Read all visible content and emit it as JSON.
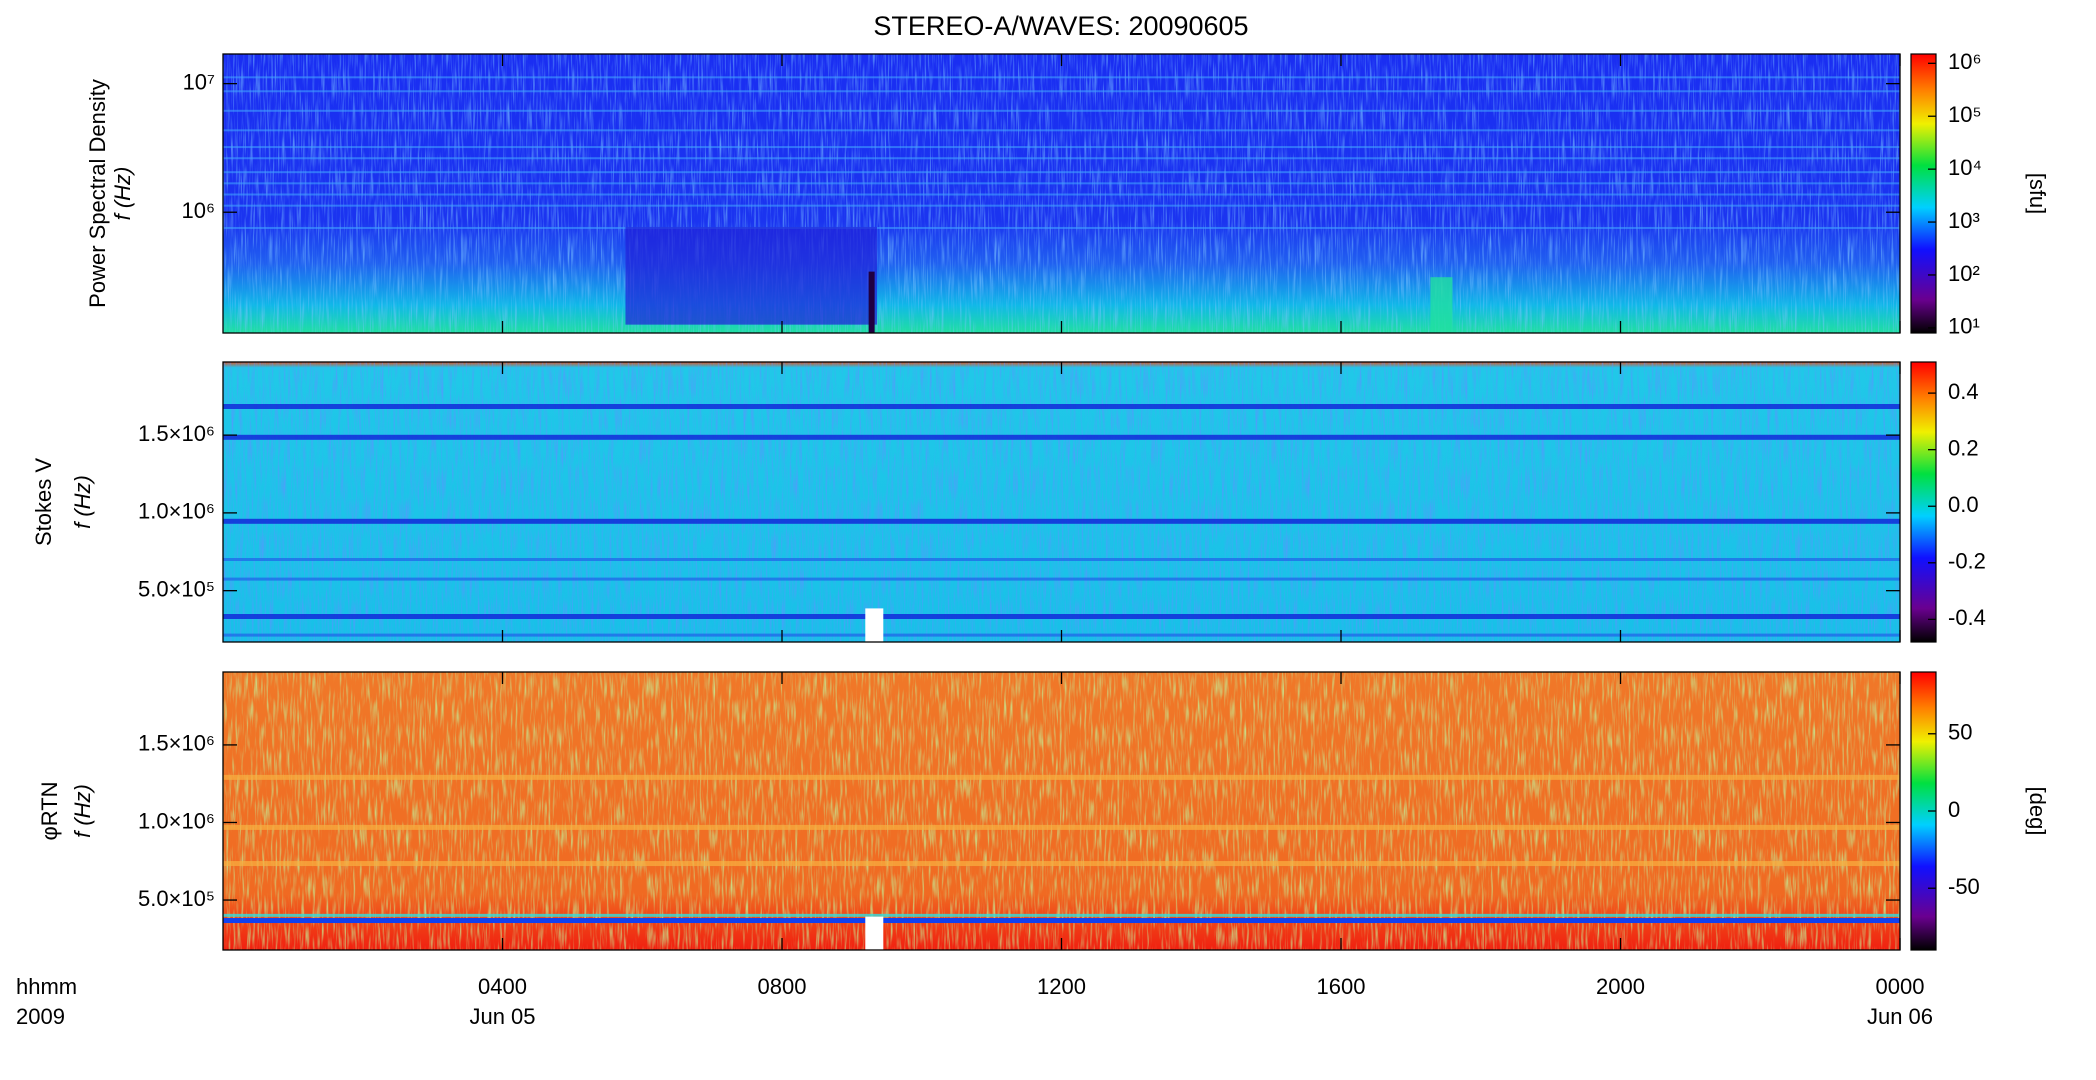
{
  "chart_data": [
    {
      "type": "heatmap",
      "title": "STEREO-A/WAVES: 20090605",
      "ylabel": [
        "Power Spectral Density",
        "f (Hz)"
      ],
      "ylog": true,
      "ylim": [
        115000,
        17000000
      ],
      "yticks": [
        {
          "value": 1000000,
          "label": "10⁶"
        },
        {
          "value": 10000000,
          "label": "10⁷"
        }
      ],
      "colorbar": {
        "label": "[sfu]",
        "log": true,
        "lim": [
          8,
          1500000
        ],
        "ticks": [
          {
            "value": 10,
            "label": "10¹"
          },
          {
            "value": 100,
            "label": "10²"
          },
          {
            "value": 1000,
            "label": "10³"
          },
          {
            "value": 10000,
            "label": "10⁴"
          },
          {
            "value": 100000,
            "label": "10⁵"
          },
          {
            "value": 1000000,
            "label": "10⁶"
          }
        ]
      }
    },
    {
      "type": "heatmap",
      "ylabel": [
        "Stokes V",
        "f (Hz)"
      ],
      "ylog": false,
      "ylim": [
        170000,
        1970000
      ],
      "yticks": [
        {
          "value": 500000,
          "label": "5.0×10⁵"
        },
        {
          "value": 1000000,
          "label": "1.0×10⁶"
        },
        {
          "value": 1500000,
          "label": "1.5×10⁶"
        }
      ],
      "colorbar": {
        "log": false,
        "lim": [
          -0.48,
          0.51
        ],
        "ticks": [
          -0.4,
          -0.2,
          {
            "value": 0,
            "label": "0.0"
          },
          0.2,
          0.4
        ]
      }
    },
    {
      "type": "heatmap",
      "ylabel": [
        "φRTN",
        "f (Hz)"
      ],
      "ylog": false,
      "ylim": [
        178000,
        1970000
      ],
      "yticks": [
        {
          "value": 500000,
          "label": "5.0×10⁵"
        },
        {
          "value": 1000000,
          "label": "1.0×10⁶"
        },
        {
          "value": 1500000,
          "label": "1.5×10⁶"
        }
      ],
      "colorbar": {
        "label": "[deg]",
        "log": false,
        "lim": [
          -90,
          90
        ],
        "ticks": [
          -50,
          0,
          50
        ]
      },
      "xlim": [
        0,
        24
      ],
      "xticks": [
        {
          "value": 4,
          "label": "0400"
        },
        {
          "value": 8,
          "label": "0800"
        },
        {
          "value": 12,
          "label": "1200"
        },
        {
          "value": 16,
          "label": "1600"
        },
        {
          "value": 20,
          "label": "2000"
        },
        {
          "value": 24,
          "label": "0000"
        }
      ],
      "xticks_dates": [
        {
          "value": 4,
          "label": "Jun 05"
        },
        {
          "value": 24,
          "label": "Jun 06"
        }
      ],
      "xaxis_header": [
        "hhmm",
        "2009"
      ]
    }
  ]
}
